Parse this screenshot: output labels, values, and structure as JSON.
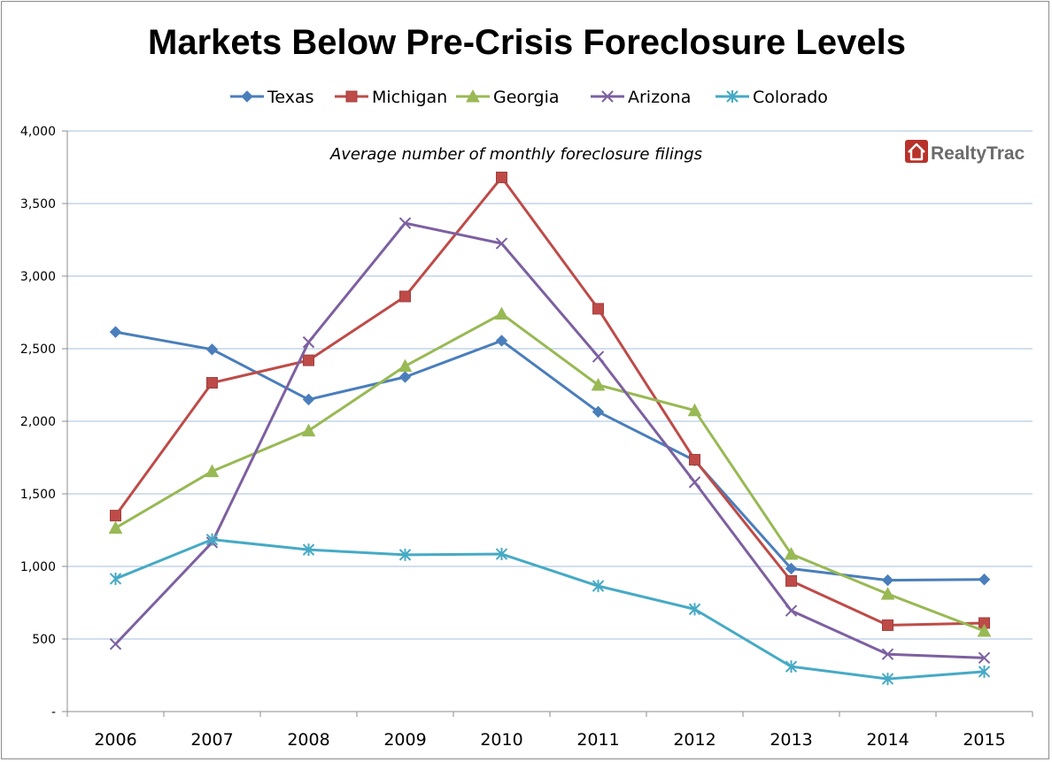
{
  "chart_data": {
    "type": "line",
    "title": "Markets Below Pre-Crisis Foreclosure Levels",
    "subtitle": "Average number of monthly foreclosure filings",
    "logo": "RealtyTrac",
    "categories": [
      "2006",
      "2007",
      "2008",
      "2009",
      "2010",
      "2011",
      "2012",
      "2013",
      "2014",
      "2015"
    ],
    "ylim": [
      0,
      4000
    ],
    "yticks": [
      0,
      500,
      1000,
      1500,
      2000,
      2500,
      3000,
      3500,
      4000
    ],
    "ytick_labels": [
      "-",
      "500",
      "1,000",
      "1,500",
      "2,000",
      "2,500",
      "3,000",
      "3,500",
      "4,000"
    ],
    "grid": true,
    "legend_position": "top",
    "series": [
      {
        "name": "Texas",
        "color": "#4a7ebb",
        "marker": "diamond",
        "values": [
          2615,
          2495,
          2150,
          2305,
          2555,
          2065,
          1730,
          985,
          905,
          910
        ]
      },
      {
        "name": "Michigan",
        "color": "#be4b48",
        "marker": "square",
        "values": [
          1350,
          2265,
          2420,
          2860,
          3680,
          2775,
          1735,
          900,
          595,
          610
        ]
      },
      {
        "name": "Georgia",
        "color": "#98b954",
        "marker": "triangle",
        "values": [
          1265,
          1655,
          1935,
          2380,
          2740,
          2250,
          2075,
          1085,
          810,
          555
        ]
      },
      {
        "name": "Arizona",
        "color": "#7d60a0",
        "marker": "x",
        "values": [
          465,
          1165,
          2545,
          3365,
          3225,
          2445,
          1580,
          695,
          395,
          370
        ]
      },
      {
        "name": "Colorado",
        "color": "#46aac5",
        "marker": "star",
        "values": [
          915,
          1185,
          1115,
          1080,
          1085,
          865,
          705,
          310,
          225,
          275
        ]
      }
    ]
  }
}
